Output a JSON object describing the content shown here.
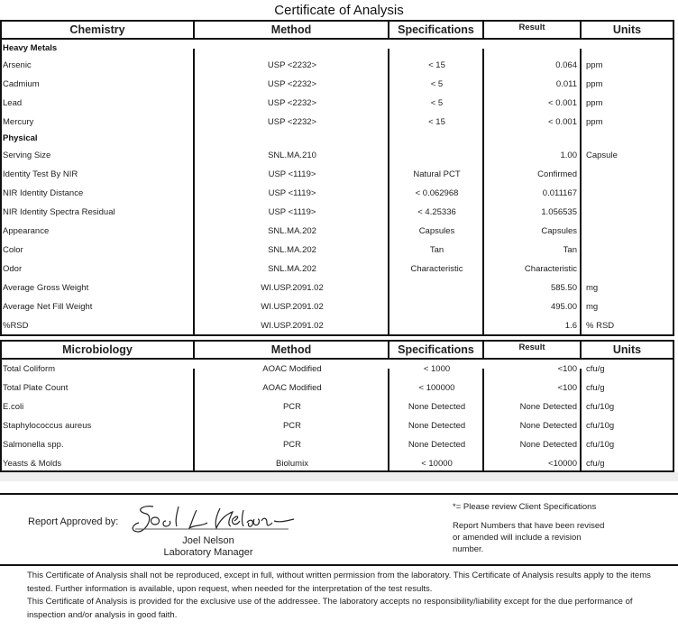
{
  "title": "Certificate of Analysis",
  "chem": {
    "headers": [
      "Chemistry",
      "Method",
      "Specifications",
      "Result",
      "Units"
    ],
    "rows": [
      {
        "section": "Heavy Metals"
      },
      {
        "name": "Arsenic",
        "method": "USP <2232>",
        "spec": "< 15",
        "result": "0.064",
        "units": "ppm"
      },
      {
        "name": "Cadmium",
        "method": "USP <2232>",
        "spec": "< 5",
        "result": "0.011",
        "units": "ppm"
      },
      {
        "name": "Lead",
        "method": "USP <2232>",
        "spec": "< 5",
        "result": "< 0.001",
        "units": "ppm"
      },
      {
        "name": "Mercury",
        "method": "USP <2232>",
        "spec": "< 15",
        "result": "< 0.001",
        "units": "ppm"
      },
      {
        "section": "Physical"
      },
      {
        "name": "Serving Size",
        "method": "SNL.MA.210",
        "spec": "",
        "result": "1.00",
        "units": "Capsule"
      },
      {
        "name": "Identity Test By NIR",
        "method": "USP <1119>",
        "spec": "Natural PCT",
        "result": "Confirmed",
        "units": ""
      },
      {
        "name": "NIR Identity Distance",
        "method": "USP <1119>",
        "spec": "< 0.062968",
        "result": "0.011167",
        "units": ""
      },
      {
        "name": "NIR Identity Spectra Residual",
        "method": "USP <1119>",
        "spec": "< 4.25336",
        "result": "1.056535",
        "units": ""
      },
      {
        "name": "Appearance",
        "method": "SNL.MA.202",
        "spec": "Capsules",
        "result": "Capsules",
        "units": ""
      },
      {
        "name": "Color",
        "method": "SNL.MA.202",
        "spec": "Tan",
        "result": "Tan",
        "units": ""
      },
      {
        "name": "Odor",
        "method": "SNL.MA.202",
        "spec": "Characteristic",
        "result": "Characteristic",
        "units": ""
      },
      {
        "name": "Average Gross Weight",
        "method": "WI.USP.2091.02",
        "spec": "",
        "result": "585.50",
        "units": "mg"
      },
      {
        "name": "Average Net Fill Weight",
        "method": "WI.USP.2091.02",
        "spec": "",
        "result": "495.00",
        "units": "mg"
      },
      {
        "name": "%RSD",
        "method": "WI.USP.2091.02",
        "spec": "",
        "result": "1.6",
        "units": "% RSD"
      }
    ]
  },
  "micro": {
    "headers": [
      "Microbiology",
      "Method",
      "Specifications",
      "Result",
      "Units"
    ],
    "rows": [
      {
        "name": "Total Coliform",
        "method": "AOAC Modified",
        "spec": "< 1000",
        "result": "<100",
        "units": "cfu/g"
      },
      {
        "name": "Total Plate Count",
        "method": "AOAC Modified",
        "spec": "< 100000",
        "result": "<100",
        "units": "cfu/g"
      },
      {
        "name": "E.coli",
        "method": "PCR",
        "spec": "None Detected",
        "result": "None Detected",
        "units": "cfu/10g"
      },
      {
        "name": "Staphylococcus aureus",
        "method": "PCR",
        "spec": "None Detected",
        "result": "None Detected",
        "units": "cfu/10g"
      },
      {
        "name": "Salmonella spp.",
        "method": "PCR",
        "spec": "None Detected",
        "result": "None Detected",
        "units": "cfu/10g"
      },
      {
        "name": "Yeasts & Molds",
        "method": "Biolumix",
        "spec": "< 10000",
        "result": "<10000",
        "units": "cfu/g"
      }
    ]
  },
  "footer": {
    "approved_label": "Report Approved by:",
    "signature": "Joel L Nelson",
    "approver_name": "Joel Nelson",
    "approver_title": "Laboratory Manager",
    "client_note": "*= Please review Client Specifications",
    "revision_note": "Report Numbers that have been revised or amended will include a revision number.",
    "disclaimer_1": "This Certificate of Analysis shall not be reproduced, except in full, without written permission from the laboratory. This Certificate of Analysis results apply to the items tested. Further information is available, upon request, when needed for the interpretation of the test results.",
    "disclaimer_2": "This Certificate of Analysis is provided for the exclusive use of the addressee. The laboratory accepts no responsibility/liability except for the due performance of inspection and/or analysis in good faith."
  }
}
